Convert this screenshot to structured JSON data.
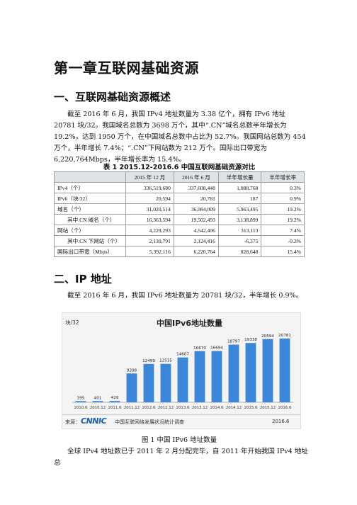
{
  "chapter_title": "第一章互联网基础资源",
  "section1": {
    "heading": "一、互联网基础资源概述",
    "paragraph": "截至 2016 年 6 月，我国 IPv4 地址数量为 3.38 亿个，拥有 IPv6 地址 20781 块/32。我国域名总数为 3698 万个，其中“.CN”域名总数半年增长为 19.2%，达到 1950 万个，在中国域名总数中占比为 52.7%。我国网站总数为 454 万个，半年增长 7.4%；“.CN”下网站数为 212 万个。国际出口带宽为 6,220,764Mbps，半年增长率为 15.4%。"
  },
  "table1": {
    "caption": "表 1 2015.12-2016.6 中国互联网基础资源对比",
    "headers": [
      "",
      "2015 年 12 月",
      "2016 年 6 月",
      "半年增长量",
      "半年增长率"
    ],
    "rows": [
      {
        "label": "IPv4（个）",
        "sub": false,
        "dec2015": "336,519,680",
        "jun2016": "337,608,448",
        "growth": "1,088,768",
        "rate": "0.3%"
      },
      {
        "label": "IPv6（块/32）",
        "sub": false,
        "dec2015": "20,594",
        "jun2016": "20,781",
        "growth": "187",
        "rate": "0.9%"
      },
      {
        "label": "域名（个）",
        "sub": false,
        "dec2015": "31,020,514",
        "jun2016": "36,984,009",
        "growth": "5,963,495",
        "rate": "19.2%"
      },
      {
        "label": "其中.CN 域名（个）",
        "sub": true,
        "dec2015": "16,363,594",
        "jun2016": "19,502,493",
        "growth": "3,138,899",
        "rate": "19.2%"
      },
      {
        "label": "网站（个）",
        "sub": false,
        "dec2015": "4,229,293",
        "jun2016": "4,542,406",
        "growth": "313,113",
        "rate": "7.4%"
      },
      {
        "label": "其中.CN 下网站（个）",
        "sub": true,
        "dec2015": "2,130,791",
        "jun2016": "2,124,416",
        "growth": "-6,375",
        "rate": "-0.3%"
      },
      {
        "label": "国际出口带宽（Mbps）",
        "sub": false,
        "dec2015": "5,392,116",
        "jun2016": "6,220,764",
        "growth": "828,648",
        "rate": "15.4%"
      }
    ]
  },
  "section2": {
    "heading": "二、IP 地址",
    "paragraph": "截至 2016 年 6 月，我国 IPv6 地址数量为 20781 块/32，半年增长 0.9%。"
  },
  "chart_data": {
    "type": "bar",
    "title": "中国IPv6地址数量",
    "ylabel": "块/32",
    "categories": [
      "2010.6",
      "2010.12",
      "2011.6",
      "2011.12",
      "2012.6",
      "2012.12",
      "2013.6",
      "2013.12",
      "2014.6",
      "2014.12",
      "2015.6",
      "2015.12",
      "2016.6"
    ],
    "values": [
      395,
      401,
      429,
      9398,
      12499,
      12535,
      14607,
      16670,
      16694,
      18797,
      19338,
      20594,
      20781
    ],
    "ylim": [
      0,
      24000
    ],
    "grid": false,
    "bar_color": "#3b86d6",
    "source_label": "来源：",
    "source_logo": "CNNIC",
    "source_org": "中国互联网络发展状况统计调查",
    "source_date": "2016.6"
  },
  "figure1_caption": "图 1 中国 IPv6 地址数量",
  "closing_line": "全球 IPv4 地址数已于 2011 年 2 月分配完毕，自 2011 年开始我国 IPv4 地址总"
}
